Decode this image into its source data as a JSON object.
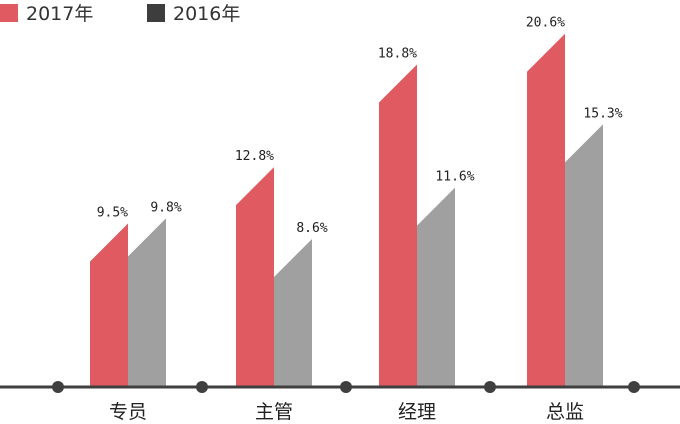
{
  "chart_data": {
    "type": "bar",
    "categories": [
      "专员",
      "主管",
      "经理",
      "总监"
    ],
    "series": [
      {
        "name": "2017年",
        "values": [
          9.5,
          12.8,
          18.8,
          20.6
        ],
        "labels": [
          "9.5%",
          "12.8%",
          "18.8%",
          "20.6%"
        ],
        "color": "#e05a61"
      },
      {
        "name": "2016年",
        "values": [
          9.8,
          8.6,
          11.6,
          15.3
        ],
        "labels": [
          "9.8%",
          "8.6%",
          "11.6%",
          "15.3%"
        ],
        "color": "#a0a0a0"
      }
    ],
    "legend_marker_colors": [
      "#e05a61",
      "#3d3d3d"
    ],
    "axis_color": "#3f3f3f",
    "legend_position": "top-left",
    "grid": false,
    "ylim": [
      0,
      21.5
    ]
  }
}
